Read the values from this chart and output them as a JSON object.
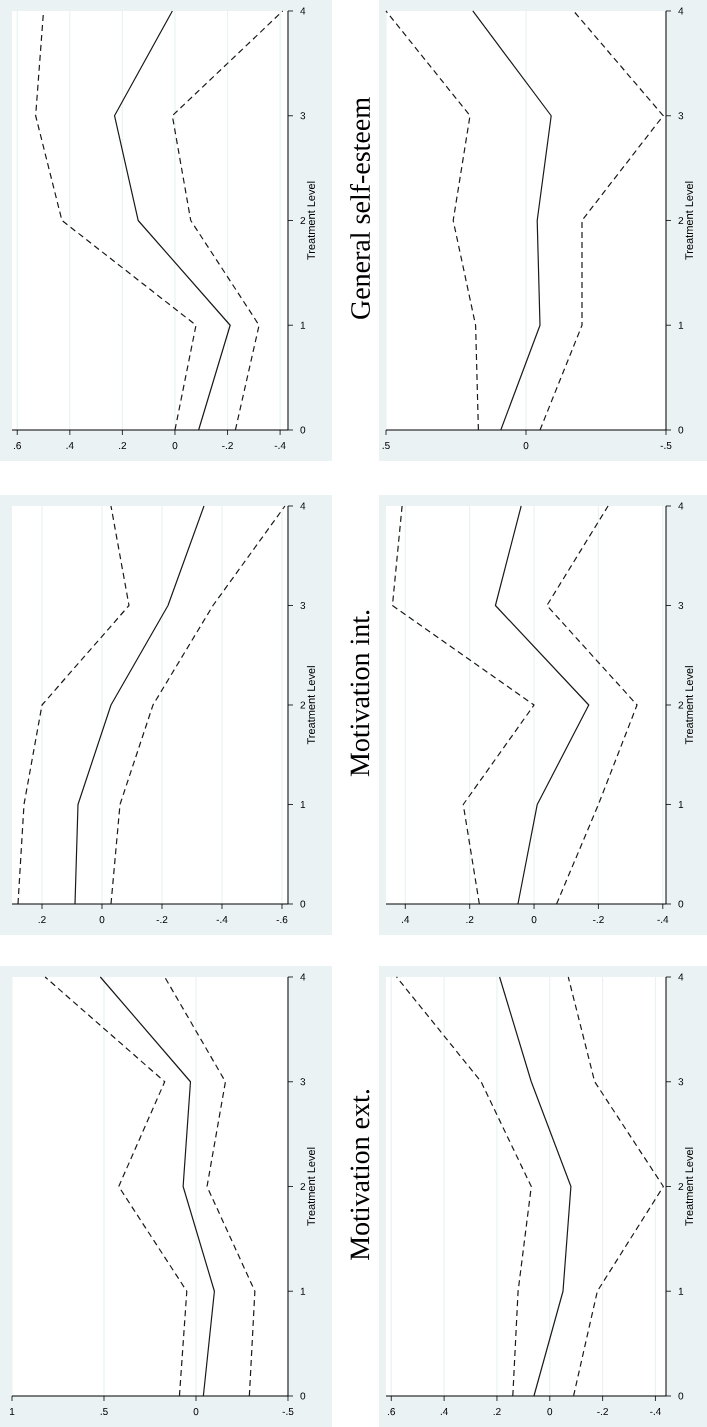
{
  "chart_data": [
    {
      "type": "line",
      "ylabel": "Treatment Level",
      "ylim": [
        0,
        4
      ],
      "yticks": [
        0,
        1,
        2,
        3,
        4
      ],
      "xlim": [
        0.62,
        -0.43
      ],
      "xticks": [
        {
          "value": 0.6,
          "label": ".6"
        },
        {
          "value": 0.4,
          "label": ".4"
        },
        {
          "value": 0.2,
          "label": ".2"
        },
        0,
        {
          "value": -0.2,
          "label": "-.2"
        },
        {
          "value": -0.4,
          "label": "-.4"
        }
      ],
      "grid": "x",
      "series": [
        {
          "color": "#1a1a1a",
          "line_style": "solid",
          "x": [
            -0.09,
            -0.21,
            0.14,
            0.23,
            0.01
          ],
          "values": [
            0,
            1,
            2,
            3,
            4
          ]
        },
        {
          "color": "#1a1a1a",
          "line_style": "dashed",
          "x": [
            0.0,
            -0.08,
            0.43,
            0.53,
            0.5
          ],
          "values": [
            0,
            1,
            2,
            3,
            4
          ]
        },
        {
          "color": "#1a1a1a",
          "line_style": "dashed",
          "x": [
            -0.23,
            -0.32,
            -0.06,
            0.01,
            -0.41
          ],
          "values": [
            0,
            1,
            2,
            3,
            4
          ]
        }
      ]
    },
    {
      "type": "line",
      "title": "General self-esteem",
      "ylabel": "Treatment Level",
      "ylim": [
        0,
        4
      ],
      "yticks": [
        0,
        1,
        2,
        3,
        4
      ],
      "xlim": [
        0.5,
        -0.5
      ],
      "xticks": [
        {
          "value": 0.5,
          "label": ".5"
        },
        0,
        {
          "value": -0.5,
          "label": "-.5"
        }
      ],
      "grid": "x",
      "series": [
        {
          "color": "#1a1a1a",
          "line_style": "solid",
          "x": [
            0.09,
            -0.05,
            -0.04,
            -0.09,
            0.19
          ],
          "values": [
            0,
            1,
            2,
            3,
            4
          ]
        },
        {
          "color": "#1a1a1a",
          "line_style": "dashed",
          "x": [
            0.17,
            0.18,
            0.26,
            0.2,
            0.5
          ],
          "values": [
            0,
            1,
            2,
            3,
            4
          ]
        },
        {
          "color": "#1a1a1a",
          "line_style": "dashed",
          "x": [
            -0.05,
            -0.2,
            -0.2,
            -0.49,
            -0.17
          ],
          "values": [
            0,
            1,
            2,
            3,
            4
          ]
        }
      ]
    },
    {
      "type": "line",
      "ylabel": "Treatment Level",
      "ylim": [
        0,
        4
      ],
      "yticks": [
        0,
        1,
        2,
        3,
        4
      ],
      "xlim": [
        0.3,
        -0.62
      ],
      "xticks": [
        {
          "value": 0.2,
          "label": ".2"
        },
        0,
        {
          "value": -0.2,
          "label": "-.2"
        },
        {
          "value": -0.4,
          "label": "-.4"
        },
        {
          "value": -0.6,
          "label": "-.6"
        }
      ],
      "grid": "x",
      "series": [
        {
          "color": "#1a1a1a",
          "line_style": "solid",
          "x": [
            0.09,
            0.08,
            -0.03,
            -0.22,
            -0.34
          ],
          "values": [
            0,
            1,
            2,
            3,
            4
          ]
        },
        {
          "color": "#1a1a1a",
          "line_style": "dashed",
          "x": [
            0.28,
            0.26,
            0.2,
            -0.09,
            -0.03
          ],
          "values": [
            0,
            1,
            2,
            3,
            4
          ]
        },
        {
          "color": "#1a1a1a",
          "line_style": "dashed",
          "x": [
            -0.03,
            -0.06,
            -0.17,
            -0.37,
            -0.61
          ],
          "values": [
            0,
            1,
            2,
            3,
            4
          ]
        }
      ]
    },
    {
      "type": "line",
      "title": "Motivation int.",
      "ylabel": "Treatment Level",
      "ylim": [
        0,
        4
      ],
      "yticks": [
        0,
        1,
        2,
        3,
        4
      ],
      "xlim": [
        0.46,
        -0.41
      ],
      "xticks": [
        {
          "value": 0.4,
          "label": ".4"
        },
        {
          "value": 0.2,
          "label": ".2"
        },
        0,
        {
          "value": -0.2,
          "label": "-.2"
        },
        {
          "value": -0.4,
          "label": "-.4"
        }
      ],
      "grid": "x",
      "series": [
        {
          "color": "#1a1a1a",
          "line_style": "solid",
          "x": [
            0.05,
            -0.01,
            -0.17,
            0.12,
            0.04
          ],
          "values": [
            0,
            1,
            2,
            3,
            4
          ]
        },
        {
          "color": "#1a1a1a",
          "line_style": "dashed",
          "x": [
            0.17,
            0.22,
            0.0,
            0.44,
            0.41
          ],
          "values": [
            0,
            1,
            2,
            3,
            4
          ]
        },
        {
          "color": "#1a1a1a",
          "line_style": "dashed",
          "x": [
            -0.07,
            -0.2,
            -0.32,
            -0.04,
            -0.23
          ],
          "values": [
            0,
            1,
            2,
            3,
            4
          ]
        }
      ]
    },
    {
      "type": "line",
      "ylabel": "Treatment Level",
      "ylim": [
        0,
        4
      ],
      "yticks": [
        0,
        1,
        2,
        3,
        4
      ],
      "xlim": [
        1,
        -0.5
      ],
      "xticks": [
        1,
        {
          "value": 0.5,
          "label": ".5"
        },
        0,
        {
          "value": -0.5,
          "label": "-.5"
        }
      ],
      "grid": "x",
      "series": [
        {
          "color": "#1a1a1a",
          "line_style": "solid",
          "x": [
            -0.04,
            -0.1,
            0.07,
            0.03,
            0.52
          ],
          "values": [
            0,
            1,
            2,
            3,
            4
          ]
        },
        {
          "color": "#1a1a1a",
          "line_style": "dashed",
          "x": [
            0.09,
            0.05,
            0.42,
            0.17,
            0.82
          ],
          "values": [
            0,
            1,
            2,
            3,
            4
          ]
        },
        {
          "color": "#1a1a1a",
          "line_style": "dashed",
          "x": [
            -0.29,
            -0.32,
            -0.06,
            -0.16,
            0.17
          ],
          "values": [
            0,
            1,
            2,
            3,
            4
          ]
        }
      ]
    },
    {
      "type": "line",
      "title": "Motivation ext.",
      "ylabel": "Treatment Level",
      "ylim": [
        0,
        4
      ],
      "yticks": [
        0,
        1,
        2,
        3,
        4
      ],
      "xlim": [
        0.62,
        -0.44
      ],
      "xticks": [
        {
          "value": 0.6,
          "label": ".6"
        },
        {
          "value": 0.4,
          "label": ".4"
        },
        {
          "value": 0.2,
          "label": ".2"
        },
        0,
        {
          "value": -0.2,
          "label": "-.2"
        },
        {
          "value": -0.4,
          "label": "-.4"
        }
      ],
      "grid": "x",
      "series": [
        {
          "color": "#1a1a1a",
          "line_style": "solid",
          "x": [
            0.06,
            -0.05,
            -0.08,
            0.07,
            0.19
          ],
          "values": [
            0,
            1,
            2,
            3,
            4
          ]
        },
        {
          "color": "#1a1a1a",
          "line_style": "dashed",
          "x": [
            0.14,
            0.12,
            0.07,
            0.26,
            0.58
          ],
          "values": [
            0,
            1,
            2,
            3,
            4
          ]
        },
        {
          "color": "#1a1a1a",
          "line_style": "dashed",
          "x": [
            -0.09,
            -0.18,
            -0.43,
            -0.17,
            -0.07
          ],
          "values": [
            0,
            1,
            2,
            3,
            4
          ]
        }
      ]
    }
  ]
}
